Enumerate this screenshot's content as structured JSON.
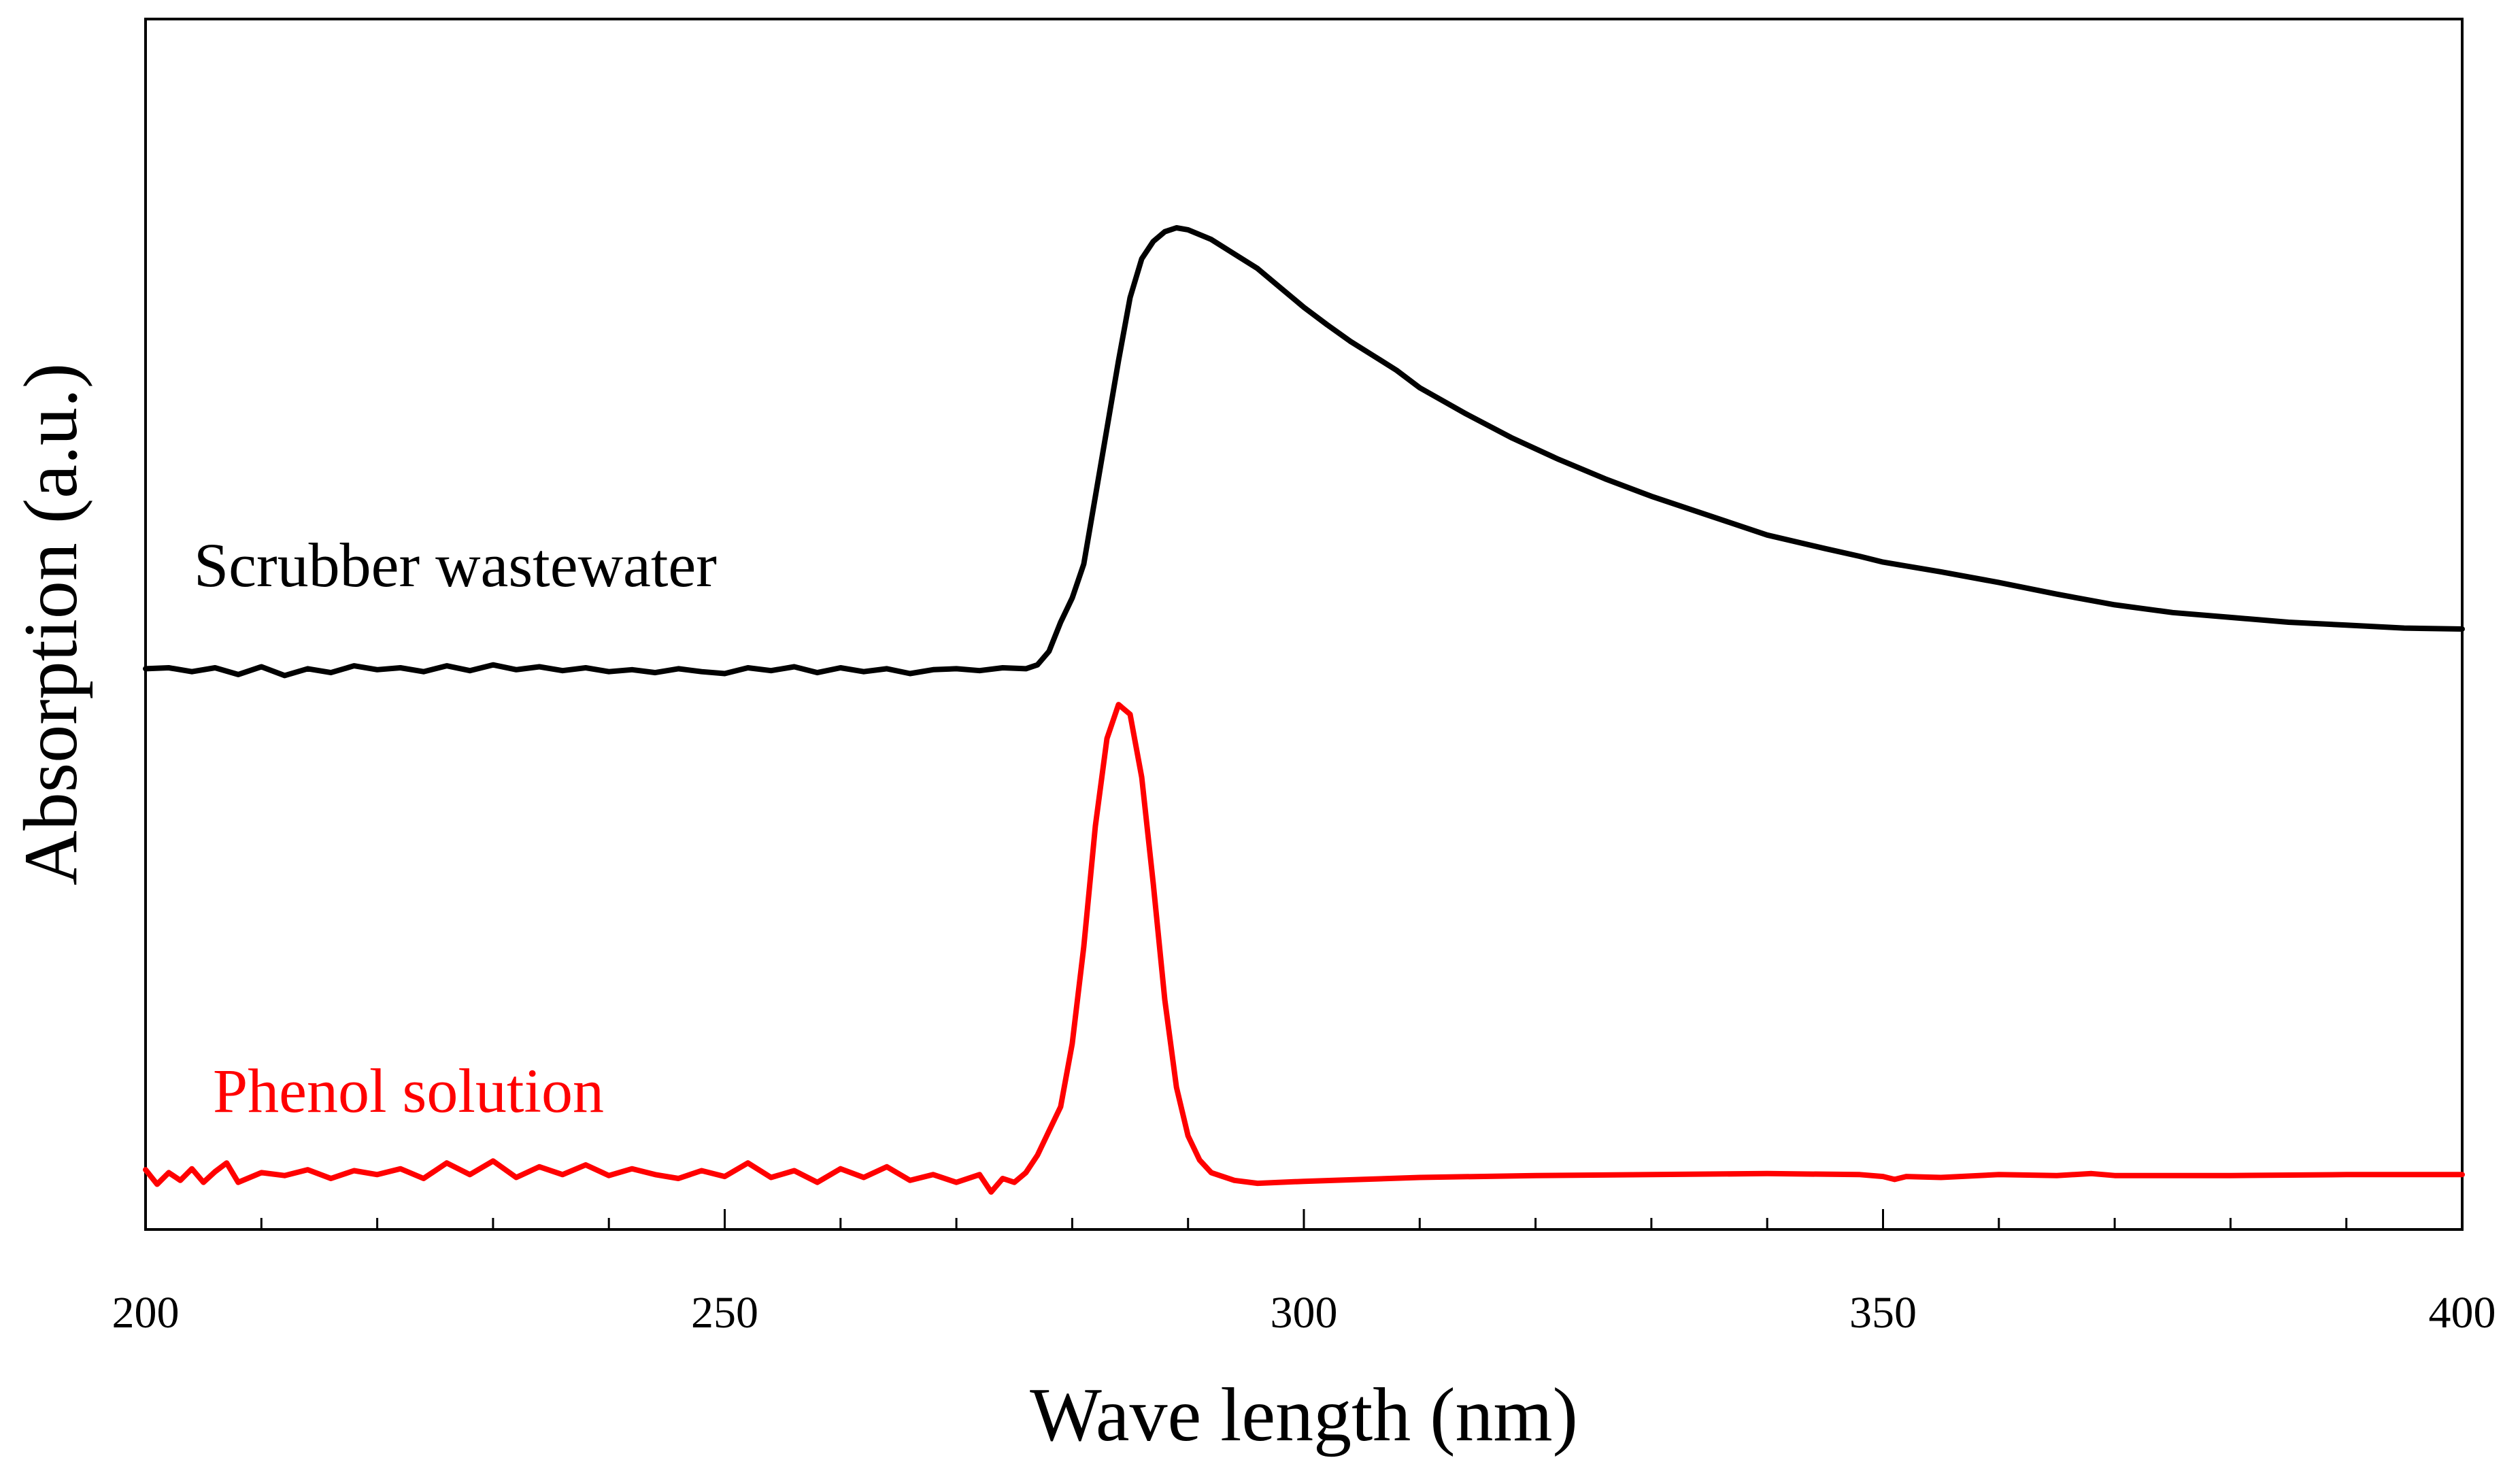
{
  "chart_data": {
    "type": "line",
    "title": "",
    "xlabel": "Wave length (nm)",
    "ylabel": "Absorption (a.u.)",
    "xlim": [
      200,
      400
    ],
    "ylim": [
      0,
      1
    ],
    "x_ticks": [
      200,
      250,
      300,
      350,
      400
    ],
    "x_minor_step": 10,
    "y_ticks_shown": false,
    "grid": false,
    "series": [
      {
        "name": "Scrubber wastewater",
        "color": "#000000",
        "points": [
          [
            200,
            0.552
          ],
          [
            202,
            0.553
          ],
          [
            204,
            0.549
          ],
          [
            206,
            0.553
          ],
          [
            208,
            0.546
          ],
          [
            210,
            0.554
          ],
          [
            212,
            0.545
          ],
          [
            214,
            0.552
          ],
          [
            216,
            0.548
          ],
          [
            218,
            0.555
          ],
          [
            220,
            0.551
          ],
          [
            222,
            0.553
          ],
          [
            224,
            0.549
          ],
          [
            226,
            0.555
          ],
          [
            228,
            0.55
          ],
          [
            230,
            0.556
          ],
          [
            232,
            0.551
          ],
          [
            234,
            0.554
          ],
          [
            236,
            0.55
          ],
          [
            238,
            0.553
          ],
          [
            240,
            0.549
          ],
          [
            242,
            0.551
          ],
          [
            244,
            0.548
          ],
          [
            246,
            0.552
          ],
          [
            248,
            0.549
          ],
          [
            250,
            0.547
          ],
          [
            252,
            0.553
          ],
          [
            254,
            0.55
          ],
          [
            256,
            0.554
          ],
          [
            258,
            0.548
          ],
          [
            260,
            0.553
          ],
          [
            262,
            0.549
          ],
          [
            264,
            0.552
          ],
          [
            266,
            0.547
          ],
          [
            268,
            0.551
          ],
          [
            270,
            0.552
          ],
          [
            272,
            0.55
          ],
          [
            274,
            0.553
          ],
          [
            276,
            0.552
          ],
          [
            277,
            0.556
          ],
          [
            278,
            0.57
          ],
          [
            279,
            0.6
          ],
          [
            280,
            0.625
          ],
          [
            281,
            0.66
          ],
          [
            282,
            0.73
          ],
          [
            283,
            0.8
          ],
          [
            284,
            0.87
          ],
          [
            285,
            0.935
          ],
          [
            286,
            0.975
          ],
          [
            287,
            0.993
          ],
          [
            288,
            1.003
          ],
          [
            289,
            1.007
          ],
          [
            290,
            1.005
          ],
          [
            292,
            0.995
          ],
          [
            294,
            0.98
          ],
          [
            296,
            0.965
          ],
          [
            298,
            0.945
          ],
          [
            300,
            0.925
          ],
          [
            302,
            0.907
          ],
          [
            304,
            0.89
          ],
          [
            306,
            0.875
          ],
          [
            308,
            0.86
          ],
          [
            310,
            0.842
          ],
          [
            314,
            0.815
          ],
          [
            318,
            0.79
          ],
          [
            322,
            0.768
          ],
          [
            326,
            0.748
          ],
          [
            330,
            0.73
          ],
          [
            335,
            0.71
          ],
          [
            340,
            0.69
          ],
          [
            345,
            0.676
          ],
          [
            348,
            0.668
          ],
          [
            350,
            0.662
          ],
          [
            355,
            0.652
          ],
          [
            360,
            0.641
          ],
          [
            365,
            0.629
          ],
          [
            370,
            0.618
          ],
          [
            375,
            0.61
          ],
          [
            380,
            0.605
          ],
          [
            385,
            0.6
          ],
          [
            390,
            0.597
          ],
          [
            395,
            0.594
          ],
          [
            400,
            0.593
          ]
        ]
      },
      {
        "name": "Phenol solution",
        "color": "#ff0000",
        "points": [
          [
            200,
            0.035
          ],
          [
            201,
            0.02
          ],
          [
            202,
            0.032
          ],
          [
            203,
            0.024
          ],
          [
            204,
            0.036
          ],
          [
            205,
            0.022
          ],
          [
            206,
            0.033
          ],
          [
            207,
            0.042
          ],
          [
            208,
            0.022
          ],
          [
            210,
            0.032
          ],
          [
            212,
            0.029
          ],
          [
            214,
            0.035
          ],
          [
            216,
            0.026
          ],
          [
            218,
            0.034
          ],
          [
            220,
            0.03
          ],
          [
            222,
            0.036
          ],
          [
            224,
            0.026
          ],
          [
            226,
            0.042
          ],
          [
            228,
            0.03
          ],
          [
            230,
            0.044
          ],
          [
            232,
            0.027
          ],
          [
            234,
            0.038
          ],
          [
            236,
            0.03
          ],
          [
            238,
            0.04
          ],
          [
            240,
            0.029
          ],
          [
            242,
            0.036
          ],
          [
            244,
            0.03
          ],
          [
            246,
            0.026
          ],
          [
            248,
            0.034
          ],
          [
            250,
            0.028
          ],
          [
            252,
            0.042
          ],
          [
            254,
            0.027
          ],
          [
            256,
            0.034
          ],
          [
            258,
            0.022
          ],
          [
            260,
            0.036
          ],
          [
            262,
            0.027
          ],
          [
            264,
            0.038
          ],
          [
            266,
            0.024
          ],
          [
            268,
            0.03
          ],
          [
            270,
            0.022
          ],
          [
            272,
            0.03
          ],
          [
            273,
            0.012
          ],
          [
            274,
            0.026
          ],
          [
            275,
            0.022
          ],
          [
            276,
            0.032
          ],
          [
            277,
            0.05
          ],
          [
            278,
            0.075
          ],
          [
            279,
            0.1
          ],
          [
            280,
            0.165
          ],
          [
            281,
            0.265
          ],
          [
            282,
            0.39
          ],
          [
            283,
            0.48
          ],
          [
            284,
            0.515
          ],
          [
            285,
            0.505
          ],
          [
            286,
            0.44
          ],
          [
            287,
            0.33
          ],
          [
            288,
            0.21
          ],
          [
            289,
            0.12
          ],
          [
            290,
            0.07
          ],
          [
            291,
            0.045
          ],
          [
            292,
            0.032
          ],
          [
            294,
            0.024
          ],
          [
            296,
            0.021
          ],
          [
            300,
            0.023
          ],
          [
            305,
            0.025
          ],
          [
            310,
            0.027
          ],
          [
            320,
            0.029
          ],
          [
            330,
            0.03
          ],
          [
            340,
            0.031
          ],
          [
            348,
            0.03
          ],
          [
            350,
            0.028
          ],
          [
            351,
            0.025
          ],
          [
            352,
            0.028
          ],
          [
            355,
            0.027
          ],
          [
            360,
            0.03
          ],
          [
            365,
            0.029
          ],
          [
            368,
            0.031
          ],
          [
            370,
            0.029
          ],
          [
            380,
            0.029
          ],
          [
            390,
            0.03
          ],
          [
            400,
            0.03
          ]
        ]
      }
    ],
    "annotations": [
      {
        "text": "Scrubber wastewater",
        "color": "#000000"
      },
      {
        "text": "Phenol solution",
        "color": "#ff0000"
      }
    ]
  }
}
